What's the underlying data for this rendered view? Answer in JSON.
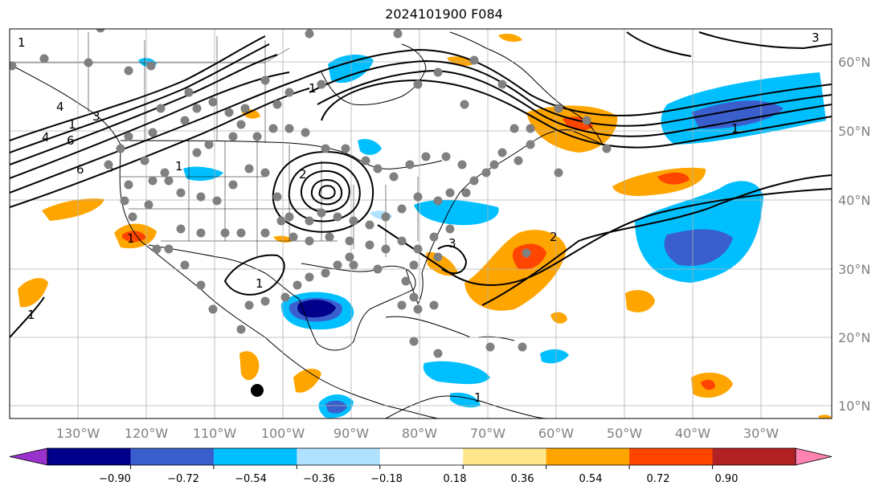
{
  "title": "2024101900 F084",
  "colors": {
    "land": "#ffffff",
    "grid": "#b0b0b0",
    "coast": "#000000",
    "contour": "#000000",
    "station": "#808080",
    "axis_label": "#808080"
  },
  "lon_labels": [
    "130°W",
    "120°W",
    "110°W",
    "100°W",
    "90°W",
    "80°W",
    "70°W",
    "60°W",
    "50°W",
    "40°W",
    "30°W"
  ],
  "lat_labels": [
    "60°N",
    "50°N",
    "40°N",
    "30°N",
    "20°N",
    "10°N"
  ],
  "colorbar": {
    "colors": [
      "#9932cc",
      "#00008b",
      "#3a5fcd",
      "#00bfff",
      "#b0e2ff",
      "#ffffff",
      "#ffe78c",
      "#ffa500",
      "#ff4500",
      "#b22222",
      "#ff83b0"
    ],
    "tick_labels": [
      "−0.90",
      "−0.72",
      "−0.54",
      "−0.36",
      "−0.18",
      "0.18",
      "0.36",
      "0.54",
      "0.72",
      "0.90"
    ]
  },
  "contour_labels": [
    "1",
    "4",
    "1",
    "3",
    "6",
    "6",
    "3",
    "4",
    "1",
    "2",
    "1",
    "1",
    "1",
    "1",
    "2",
    "3",
    "1",
    "3",
    "1"
  ]
}
